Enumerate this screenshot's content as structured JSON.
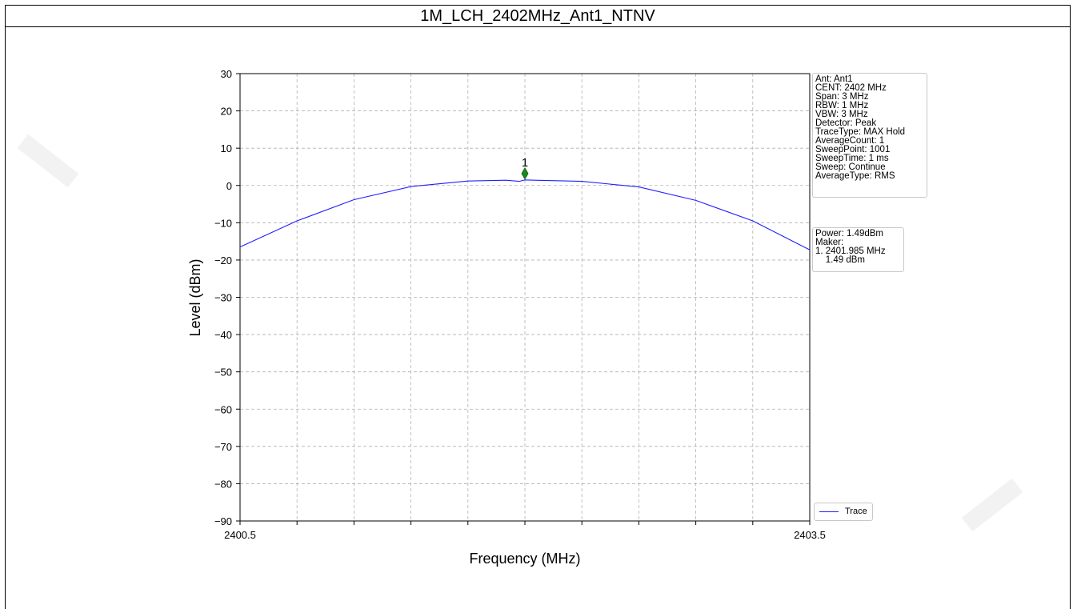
{
  "page_title": "1M_LCH_2402MHz_Ant1_NTNV",
  "info_box": {
    "lines": [
      "Ant: Ant1",
      "CENT: 2402 MHz",
      "Span: 3 MHz",
      "RBW: 1 MHz",
      "VBW: 3 MHz",
      "Detector: Peak",
      "TraceType: MAX Hold",
      "AverageCount: 1",
      "SweepPoint: 1001",
      "SweepTime: 1 ms",
      "Sweep: Continue",
      "AverageType: RMS"
    ]
  },
  "marker_box": {
    "lines": [
      "Power: 1.49dBm",
      "Maker:",
      "1. 2401.985 MHz",
      "    1.49 dBm"
    ]
  },
  "chart_data": {
    "type": "line",
    "title": "",
    "xlabel": "Frequency (MHz)",
    "ylabel": "Level (dBm)",
    "xlim": [
      2400.5,
      2403.5
    ],
    "ylim": [
      -90,
      30
    ],
    "x_tick_labels": [
      "2400.5",
      "2403.5"
    ],
    "x_minor_ticks": [
      2400.8,
      2401.1,
      2401.4,
      2401.7,
      2402.0,
      2402.3,
      2402.6,
      2402.9,
      2403.2
    ],
    "y_ticks": [
      30,
      20,
      10,
      0,
      -10,
      -20,
      -30,
      -40,
      -50,
      -60,
      -70,
      -80,
      -90
    ],
    "y_tick_labels": [
      "30",
      "20",
      "10",
      "0",
      "−10",
      "−20",
      "−30",
      "−40",
      "−50",
      "−60",
      "−70",
      "−80",
      "−90"
    ],
    "grid": true,
    "legend_position": "bottom-right",
    "series": [
      {
        "name": "Trace",
        "color": "#2020ff",
        "x": [
          2400.5,
          2400.8,
          2401.1,
          2401.4,
          2401.7,
          2401.9,
          2401.97,
          2402.0,
          2402.05,
          2402.3,
          2402.6,
          2402.9,
          2403.2,
          2403.5
        ],
        "y": [
          -16.5,
          -9.5,
          -3.8,
          -0.3,
          1.2,
          1.4,
          1.1,
          1.5,
          1.4,
          1.1,
          -0.4,
          -4.0,
          -9.5,
          -17.3
        ]
      }
    ],
    "markers": [
      {
        "label": "1",
        "x": 2402.0,
        "y": 3.2,
        "color": "#1a8a1a"
      }
    ]
  }
}
